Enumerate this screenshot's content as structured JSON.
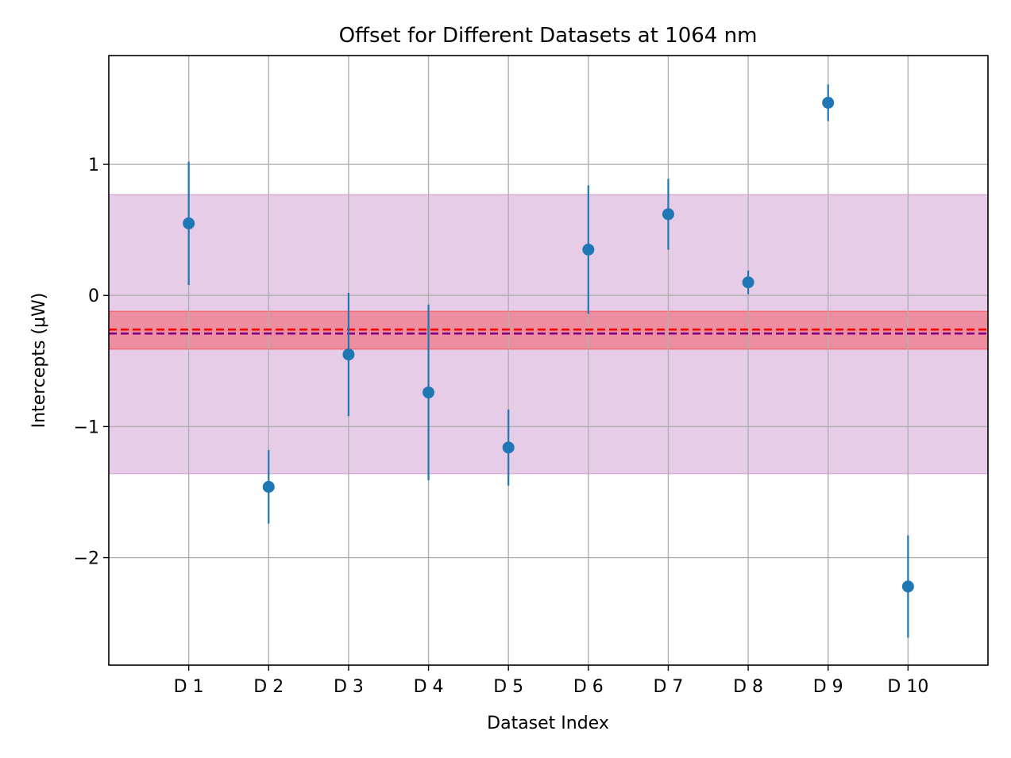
{
  "chart_data": {
    "type": "scatter",
    "title": "Offset for Different Datasets at 1064 nm",
    "xlabel": "Dataset Index",
    "ylabel": "Intercepts (μW)",
    "categories": [
      "D 1",
      "D 2",
      "D 3",
      "D 4",
      "D 5",
      "D 6",
      "D 7",
      "D 8",
      "D 9",
      "D 10"
    ],
    "values": [
      0.55,
      -1.46,
      -0.45,
      -0.74,
      -1.16,
      0.35,
      0.62,
      0.1,
      1.47,
      -2.22
    ],
    "errors": [
      0.47,
      0.28,
      0.47,
      0.67,
      0.29,
      0.49,
      0.27,
      0.09,
      0.14,
      0.39
    ],
    "ylim": [
      -2.82,
      1.83
    ],
    "xlim": [
      0,
      11
    ],
    "yticks": [
      1,
      0,
      -1,
      -2
    ],
    "ytick_labels": [
      "1",
      "0",
      "−1",
      "−2"
    ],
    "grid": true,
    "series_color": "#1f77b4",
    "reference_lines": [
      {
        "value": -0.29,
        "color": "#800080",
        "style": "dashed"
      },
      {
        "value": -0.26,
        "color": "#ff0000",
        "style": "dashed"
      }
    ],
    "bands": [
      {
        "from": -1.36,
        "to": 0.77,
        "color": "#800080",
        "opacity": 0.2
      },
      {
        "from": -0.41,
        "to": -0.12,
        "color": "#ff0000",
        "opacity": 0.3
      }
    ]
  }
}
